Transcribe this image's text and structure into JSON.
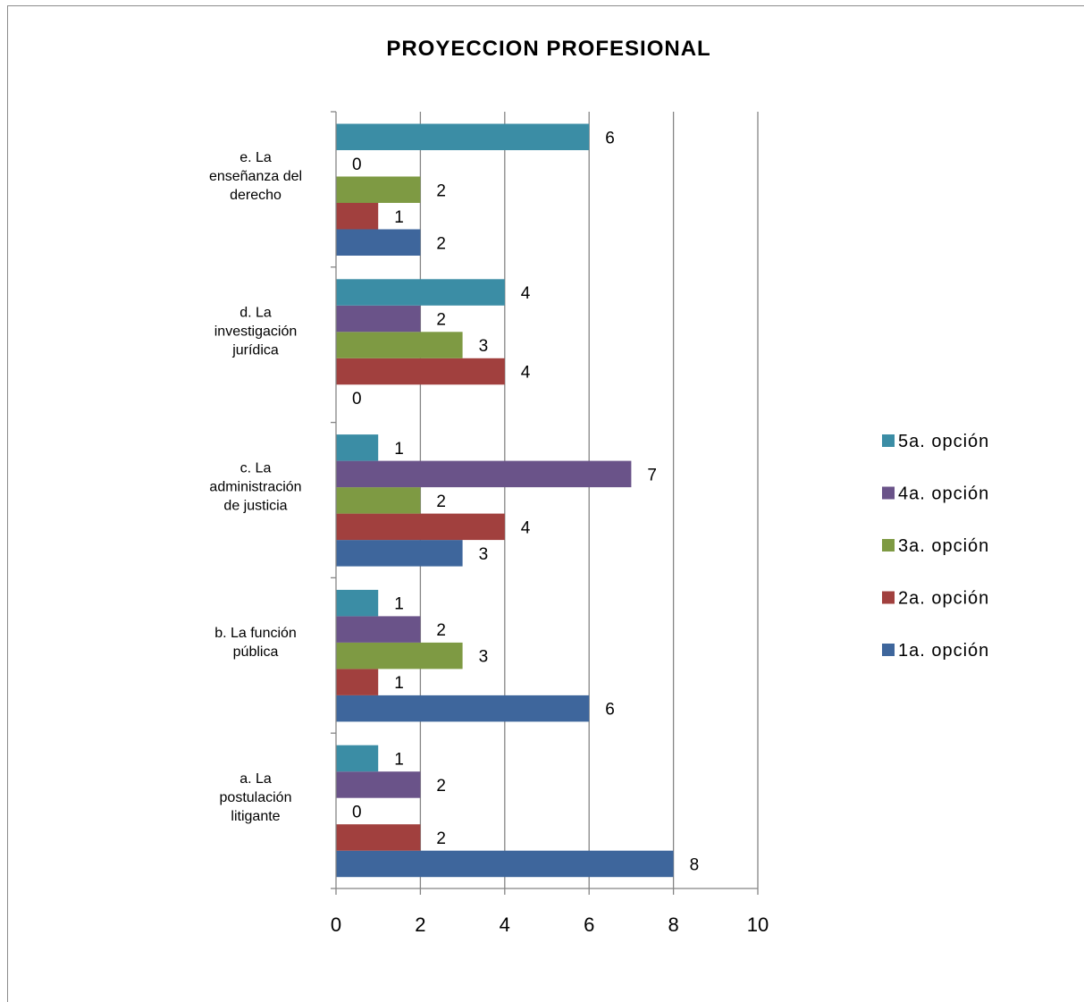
{
  "chart_data": {
    "type": "bar",
    "orientation": "horizontal",
    "title": "PROYECCION PROFESIONAL",
    "categories": [
      [
        "a. La",
        "postulación",
        "litigante"
      ],
      [
        "b. La función",
        "pública"
      ],
      [
        "c. La",
        "administración",
        "de justicia"
      ],
      [
        "d. La",
        "investigación",
        "jurídica"
      ],
      [
        "e. La",
        "enseñanza del",
        "derecho"
      ]
    ],
    "series": [
      {
        "name": "1a. opción",
        "color": "#3e669c",
        "values": [
          8,
          6,
          3,
          0,
          2
        ]
      },
      {
        "name": "2a. opción",
        "color": "#a1403e",
        "values": [
          2,
          1,
          4,
          4,
          1
        ]
      },
      {
        "name": "3a. opción",
        "color": "#7e9a43",
        "values": [
          0,
          3,
          2,
          3,
          2
        ]
      },
      {
        "name": "4a. opción",
        "color": "#6a5389",
        "values": [
          2,
          2,
          7,
          2,
          0
        ]
      },
      {
        "name": "5a. opción",
        "color": "#3b8da5",
        "values": [
          1,
          1,
          1,
          4,
          6
        ]
      }
    ],
    "xlim": [
      0,
      10
    ],
    "xticks": [
      "0",
      "2",
      "4",
      "6",
      "8",
      "10"
    ],
    "grid": true,
    "legend_position": "right"
  }
}
